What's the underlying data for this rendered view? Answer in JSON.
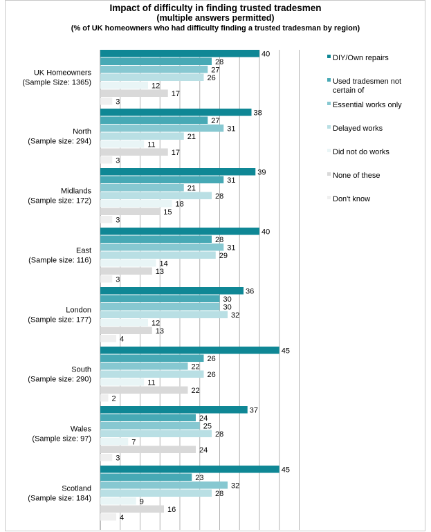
{
  "chart_data": {
    "type": "bar",
    "orientation": "horizontal",
    "title": "Impact of difficulty in finding trusted tradesmen",
    "subtitle": "(multiple answers permitted)",
    "subtitle2": "(% of UK homeowners who had difficulty finding a trusted tradesman by region)",
    "xlim": [
      0,
      50
    ],
    "grid": true,
    "legend_position": "right",
    "categories": [
      {
        "name": "UK Homeowners",
        "sample": "(Sample Size: 1365)"
      },
      {
        "name": "North",
        "sample": "(Sample size: 294)"
      },
      {
        "name": "Midlands",
        "sample": "(Sample size: 172)"
      },
      {
        "name": "East",
        "sample": "(Sample size: 116)"
      },
      {
        "name": "London",
        "sample": "(Sample size: 177)"
      },
      {
        "name": "South",
        "sample": "(Sample size: 290)"
      },
      {
        "name": "Wales",
        "sample": "(Sample size: 97)"
      },
      {
        "name": "Scotland",
        "sample": "(Sample size: 184)"
      }
    ],
    "series": [
      {
        "name": "DIY/Own repairs",
        "legend_lines": [
          "DIY/Own repairs"
        ],
        "color": "#0f8795",
        "values": [
          40,
          38,
          39,
          40,
          36,
          45,
          37,
          45
        ]
      },
      {
        "name": "Used tradesmen not certain of",
        "legend_lines": [
          "Used tradesmen not",
          "certain of"
        ],
        "color": "#47a9b5",
        "values": [
          28,
          27,
          31,
          28,
          30,
          26,
          24,
          23
        ]
      },
      {
        "name": "Essential works only",
        "legend_lines": [
          "Essential works only"
        ],
        "color": "#87c8d1",
        "values": [
          27,
          31,
          21,
          31,
          30,
          22,
          25,
          32
        ]
      },
      {
        "name": "Delayed works",
        "legend_lines": [
          "Delayed works"
        ],
        "color": "#b9dfe4",
        "values": [
          26,
          21,
          28,
          29,
          32,
          26,
          28,
          28
        ]
      },
      {
        "name": "Did not do works",
        "legend_lines": [
          "Did not do works"
        ],
        "color": "#e9f5f6",
        "values": [
          12,
          11,
          18,
          14,
          12,
          11,
          7,
          9
        ]
      },
      {
        "name": "None of these",
        "legend_lines": [
          "None of these"
        ],
        "color": "#d9d9d9",
        "values": [
          17,
          17,
          15,
          13,
          13,
          22,
          24,
          16
        ]
      },
      {
        "name": "Don't know",
        "legend_lines": [
          "Don't know"
        ],
        "color": "#efefef",
        "values": [
          3,
          3,
          3,
          3,
          4,
          2,
          3,
          4
        ]
      }
    ]
  }
}
